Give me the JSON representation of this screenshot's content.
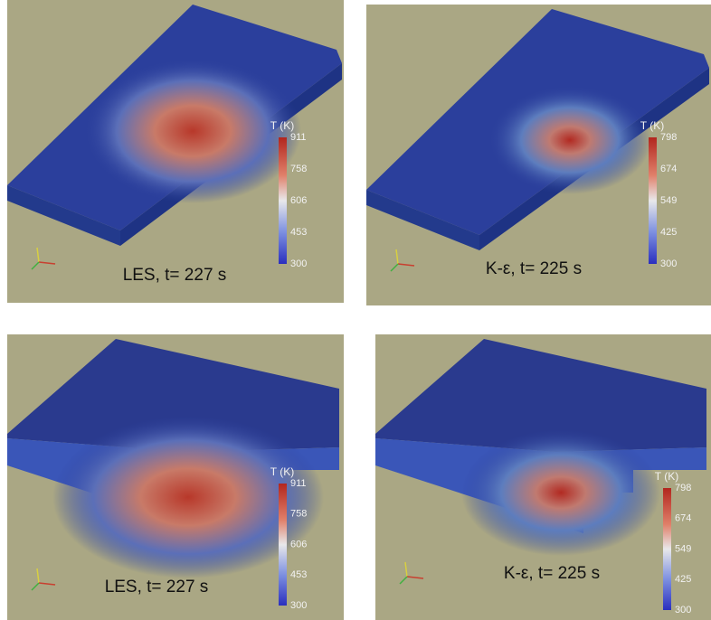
{
  "panels": [
    {
      "caption": "LES, t= 227 s",
      "colorbar": {
        "title": "T (K)",
        "ticks": [
          911,
          758,
          606,
          453,
          300
        ]
      }
    },
    {
      "caption": "K-ε, t= 225 s",
      "colorbar": {
        "title": "T (K)",
        "ticks": [
          798,
          674,
          549,
          425,
          300
        ]
      }
    },
    {
      "caption": "LES, t= 227 s",
      "colorbar": {
        "title": "T (K)",
        "ticks": [
          911,
          758,
          606,
          453,
          300
        ]
      }
    },
    {
      "caption": "K-ε, t= 225 s",
      "colorbar": {
        "title": "T (K)",
        "ticks": [
          798,
          674,
          549,
          425,
          300
        ]
      }
    }
  ]
}
